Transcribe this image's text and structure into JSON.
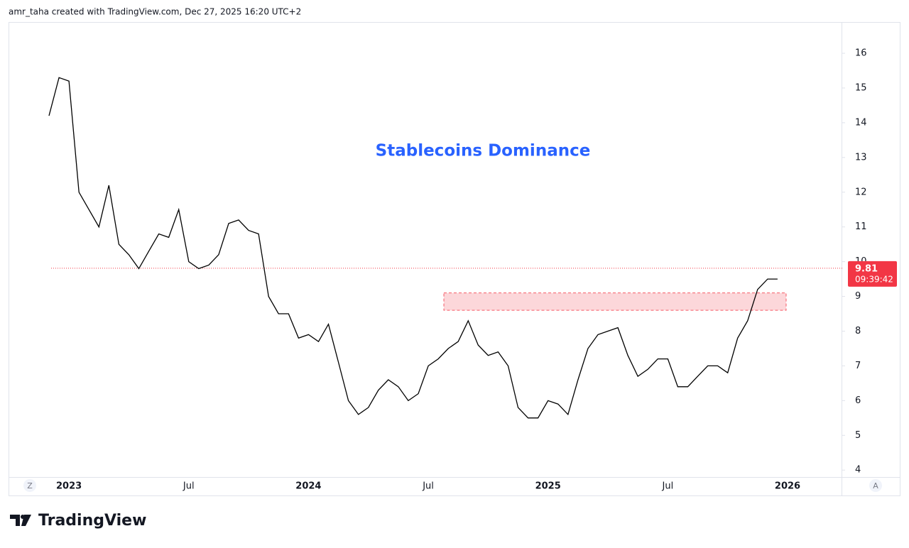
{
  "header": "amr_taha created with TradingView.com, Dec 27, 2025 16:20 UTC+2",
  "logo": "TradingView",
  "chart_data": {
    "type": "line",
    "title": "Stablecoins Dominance",
    "color": "#000000",
    "title_color": "#2962ff",
    "categories": [
      null,
      null,
      "2023",
      null,
      null,
      null,
      null,
      null,
      null,
      null,
      null,
      null,
      null,
      null,
      "Jul",
      null,
      null,
      null,
      null,
      null,
      null,
      null,
      null,
      null,
      null,
      null,
      "2024",
      null,
      null,
      null,
      null,
      null,
      null,
      null,
      null,
      null,
      null,
      null,
      "Jul",
      null,
      null,
      null,
      null,
      null,
      null,
      null,
      null,
      null,
      null,
      null,
      "2025",
      null,
      null,
      null,
      null,
      null,
      null,
      null,
      null,
      null,
      null,
      null,
      "Jul",
      null,
      null,
      null,
      null,
      null,
      null,
      null,
      null,
      null,
      null,
      null,
      "2026"
    ],
    "values": [
      14.2,
      15.3,
      15.2,
      12.0,
      11.5,
      11.0,
      12.2,
      10.5,
      10.2,
      9.8,
      10.3,
      10.8,
      10.7,
      11.5,
      10.0,
      9.8,
      9.9,
      10.2,
      11.1,
      11.2,
      10.9,
      10.8,
      9.0,
      8.5,
      8.5,
      7.8,
      7.9,
      7.7,
      8.2,
      7.1,
      6.0,
      5.6,
      5.8,
      6.3,
      6.6,
      6.4,
      6.0,
      6.2,
      7.0,
      7.2,
      7.5,
      7.7,
      8.3,
      7.6,
      7.3,
      7.4,
      7.0,
      5.8,
      5.5,
      5.5,
      6.0,
      5.9,
      5.6,
      6.6,
      7.5,
      7.9,
      8.0,
      8.1,
      7.3,
      6.7,
      6.9,
      7.2,
      7.2,
      6.4,
      6.4,
      6.7,
      7.0,
      7.0,
      6.8,
      7.8,
      8.3,
      9.2,
      9.5,
      9.5,
      null
    ],
    "ylim": [
      3.8,
      16.9
    ],
    "yticks": [
      4,
      5,
      6,
      7,
      8,
      9,
      10,
      11,
      12,
      13,
      14,
      15,
      16
    ],
    "last_price": 9.81,
    "countdown": "09:39:42",
    "last_price_color": "#f23645",
    "zone": [
      8.6,
      9.1
    ],
    "zone_color": "#f23645",
    "left_button": "Z",
    "right_button": "A"
  }
}
